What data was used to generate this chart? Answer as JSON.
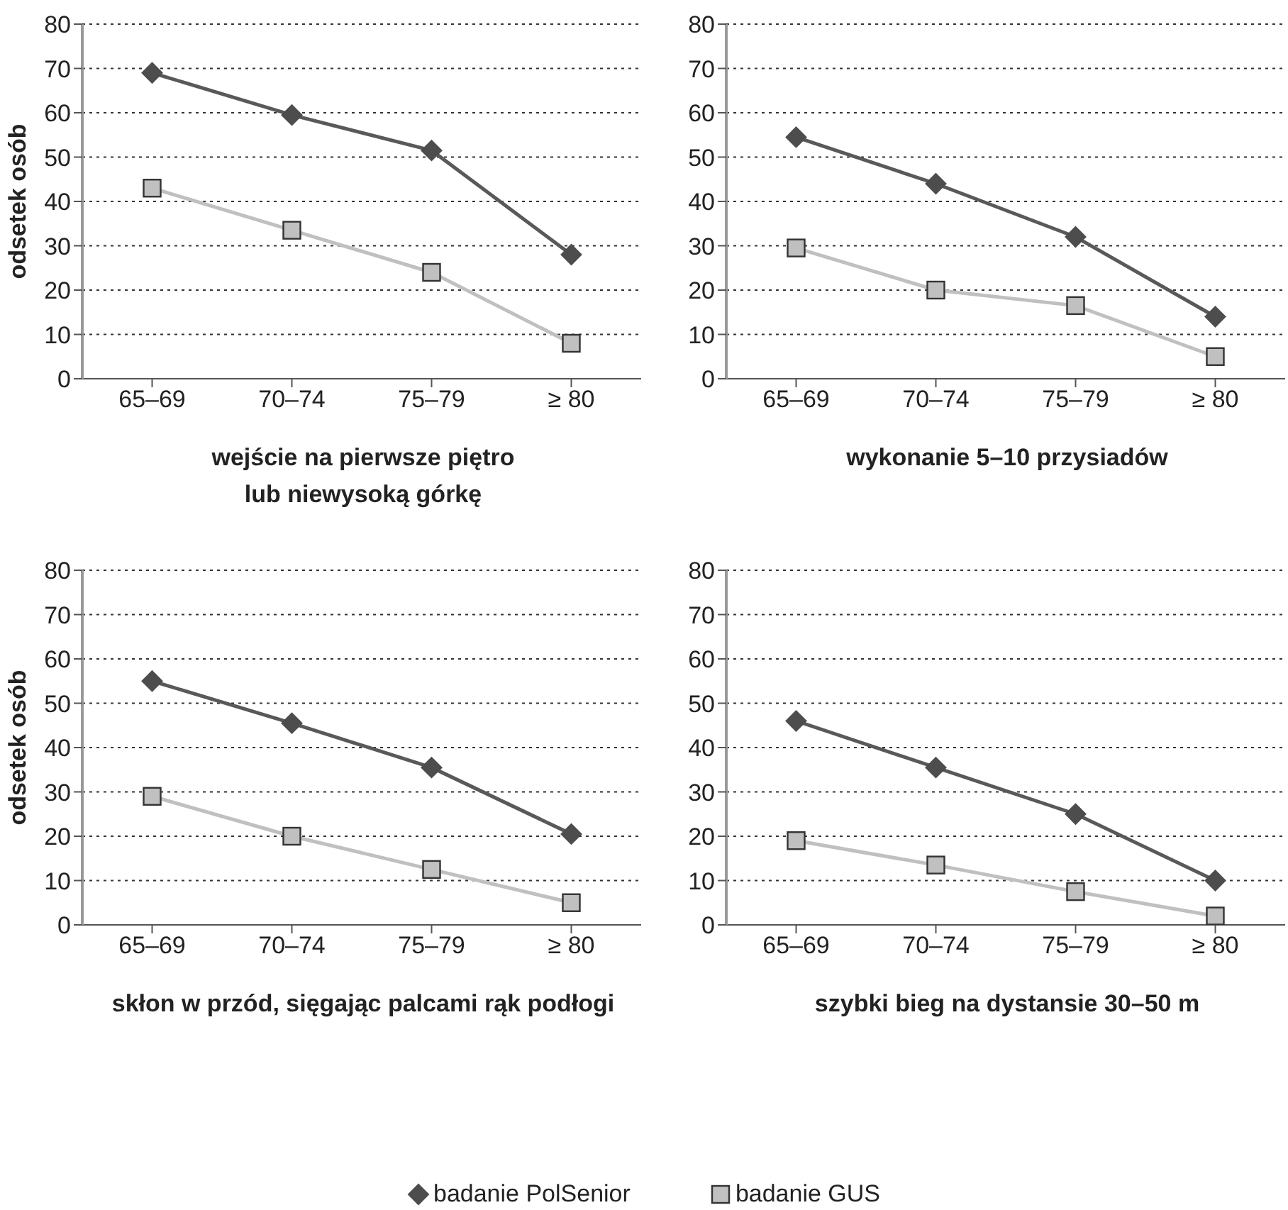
{
  "chart_data": [
    {
      "type": "line",
      "categories": [
        "65–69",
        "70–74",
        "75–79",
        "≥ 80"
      ],
      "xlabel": "wejście na pierwsze piętro lub niewysoką górkę",
      "ylabel": "odsetek osób",
      "ylim": [
        0,
        80
      ],
      "yticks": [
        0,
        10,
        20,
        30,
        40,
        50,
        60,
        70,
        80
      ],
      "grid": "y",
      "legend": "bottom",
      "series": [
        {
          "name": "badanie PolSenior",
          "color": "#595959",
          "marker": "diamond",
          "values": [
            69,
            59.5,
            51.5,
            28
          ]
        },
        {
          "name": "badanie GUS",
          "color": "#c0c0c0",
          "marker": "square",
          "values": [
            43,
            33.5,
            24,
            8
          ]
        }
      ]
    },
    {
      "type": "line",
      "categories": [
        "65–69",
        "70–74",
        "75–79",
        "≥ 80"
      ],
      "xlabel": "wykonanie 5–10 przysiadów",
      "ylim": [
        0,
        80
      ],
      "yticks": [
        0,
        10,
        20,
        30,
        40,
        50,
        60,
        70,
        80
      ],
      "grid": "y",
      "series": [
        {
          "color": "#595959",
          "marker": "diamond",
          "values": [
            54.5,
            44,
            32,
            14
          ]
        },
        {
          "color": "#c0c0c0",
          "marker": "square",
          "values": [
            29.5,
            20,
            16.5,
            5
          ]
        }
      ]
    },
    {
      "type": "line",
      "categories": [
        "65–69",
        "70–74",
        "75–79",
        "≥ 80"
      ],
      "xlabel": "skłon w przód, sięgając palcami rąk podłogi",
      "ylabel": "odsetek osób",
      "ylim": [
        0,
        80
      ],
      "yticks": [
        0,
        10,
        20,
        30,
        40,
        50,
        60,
        70,
        80
      ],
      "grid": "y",
      "series": [
        {
          "color": "#595959",
          "marker": "diamond",
          "values": [
            55,
            45.5,
            35.5,
            20.5
          ]
        },
        {
          "color": "#c0c0c0",
          "marker": "square",
          "values": [
            29,
            20,
            12.5,
            5
          ]
        }
      ]
    },
    {
      "type": "line",
      "categories": [
        "65–69",
        "70–74",
        "75–79",
        "≥ 80"
      ],
      "xlabel": "szybki bieg na dystansie 30–50 m",
      "ylim": [
        0,
        80
      ],
      "yticks": [
        0,
        10,
        20,
        30,
        40,
        50,
        60,
        70,
        80
      ],
      "grid": "y",
      "series": [
        {
          "color": "#595959",
          "marker": "diamond",
          "values": [
            46,
            35.5,
            25,
            10
          ]
        },
        {
          "color": "#c0c0c0",
          "marker": "square",
          "values": [
            19,
            13.5,
            7.5,
            2
          ]
        }
      ]
    }
  ]
}
